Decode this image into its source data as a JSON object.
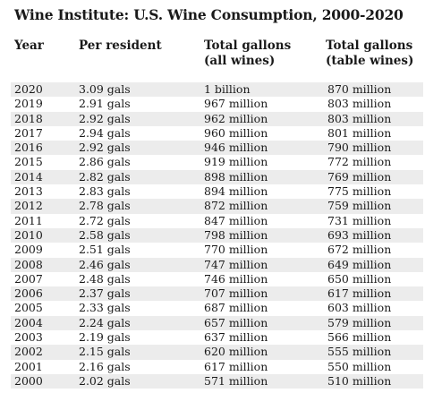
{
  "title": "Wine Institute: U.S. Wine Consumption, 2000-2020",
  "headers": {
    "year": "Year",
    "per_resident": "Per resident",
    "total_all_line1": "Total gallons",
    "total_all_line2": "(all wines)",
    "total_table_line1": "Total gallons",
    "total_table_line2": "(table wines)"
  },
  "rows": [
    {
      "year": "2020",
      "per_resident": "3.09 gals",
      "total_all": "1 billion",
      "total_table": "870 million"
    },
    {
      "year": "2019",
      "per_resident": "2.91 gals",
      "total_all": "967 million",
      "total_table": "803 million"
    },
    {
      "year": "2018",
      "per_resident": "2.92 gals",
      "total_all": "962 million",
      "total_table": "803 million"
    },
    {
      "year": "2017",
      "per_resident": "2.94 gals",
      "total_all": "960 million",
      "total_table": "801 million"
    },
    {
      "year": "2016",
      "per_resident": "2.92 gals",
      "total_all": "946 million",
      "total_table": "790 million"
    },
    {
      "year": "2015",
      "per_resident": "2.86 gals",
      "total_all": "919 million",
      "total_table": "772 million"
    },
    {
      "year": "2014",
      "per_resident": "2.82 gals",
      "total_all": "898 million",
      "total_table": "769 million"
    },
    {
      "year": "2013",
      "per_resident": "2.83 gals",
      "total_all": "894 million",
      "total_table": "775 million"
    },
    {
      "year": "2012",
      "per_resident": "2.78 gals",
      "total_all": "872 million",
      "total_table": "759 million"
    },
    {
      "year": "2011",
      "per_resident": "2.72 gals",
      "total_all": "847 million",
      "total_table": "731 million"
    },
    {
      "year": "2010",
      "per_resident": "2.58 gals",
      "total_all": "798 million",
      "total_table": "693 million"
    },
    {
      "year": "2009",
      "per_resident": "2.51 gals",
      "total_all": "770 million",
      "total_table": "672 million"
    },
    {
      "year": "2008",
      "per_resident": "2.46 gals",
      "total_all": "747 million",
      "total_table": "649 million"
    },
    {
      "year": "2007",
      "per_resident": "2.48 gals",
      "total_all": "746 million",
      "total_table": "650 million"
    },
    {
      "year": "2006",
      "per_resident": "2.37 gals",
      "total_all": "707 million",
      "total_table": "617 million"
    },
    {
      "year": "2005",
      "per_resident": "2.33 gals",
      "total_all": "687 million",
      "total_table": "603 million"
    },
    {
      "year": "2004",
      "per_resident": "2.24 gals",
      "total_all": "657 million",
      "total_table": "579 million"
    },
    {
      "year": "2003",
      "per_resident": "2.19 gals",
      "total_all": "637 million",
      "total_table": "566 million"
    },
    {
      "year": "2002",
      "per_resident": "2.15 gals",
      "total_all": "620 million",
      "total_table": "555 million"
    },
    {
      "year": "2001",
      "per_resident": "2.16 gals",
      "total_all": "617 million",
      "total_table": "550 million"
    },
    {
      "year": "2000",
      "per_resident": "2.02 gals",
      "total_all": "571 million",
      "total_table": "510 million"
    }
  ],
  "colors": {
    "stripe": "#ececec",
    "text": "#1a1a1a"
  }
}
